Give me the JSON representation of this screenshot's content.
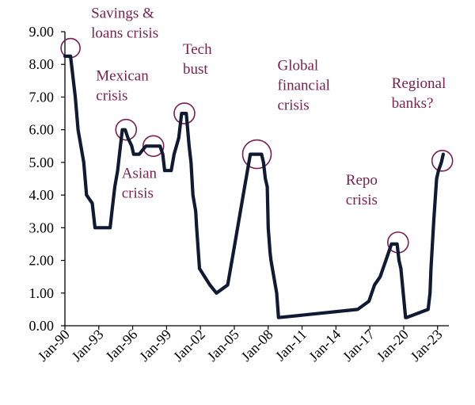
{
  "chart_data": {
    "type": "line",
    "title": "",
    "xlabel": "",
    "ylabel": "",
    "ylim": [
      0,
      9
    ],
    "y_ticks": [
      "0.00",
      "1.00",
      "2.00",
      "3.00",
      "4.00",
      "5.00",
      "6.00",
      "7.00",
      "8.00",
      "9.00"
    ],
    "x_ticks": [
      "Jan-90",
      "Jan-93",
      "Jan-96",
      "Jan-99",
      "Jan-02",
      "Jan-05",
      "Jan-08",
      "Jan-11",
      "Jan-14",
      "Jan-17",
      "Jan-20",
      "Jan-23"
    ],
    "grid": false,
    "legend": "none",
    "line_color": "#111a33",
    "annotation_color": "#7a1f4e",
    "series": [
      {
        "x": [
          "1990-01",
          "1990-07",
          "1990-12",
          "1991-03",
          "1991-09",
          "1991-12",
          "1992-06",
          "1992-09",
          "1993-06",
          "1994-01",
          "1994-03",
          "1994-06",
          "1994-09",
          "1994-12",
          "1995-02",
          "1995-05",
          "1995-08",
          "1995-12",
          "1996-02",
          "1996-08",
          "1997-03",
          "1998-06",
          "1998-09",
          "1998-10",
          "1998-11",
          "1999-06",
          "1999-09",
          "2000-02",
          "2000-05",
          "2000-10",
          "2001-01",
          "2001-03",
          "2001-05",
          "2001-08",
          "2001-09",
          "2001-12",
          "2002-11",
          "2003-06",
          "2004-06",
          "2004-12",
          "2005-06",
          "2005-12",
          "2006-06",
          "2007-06",
          "2007-08",
          "2007-10",
          "2007-12",
          "2008-01",
          "2008-03",
          "2008-04",
          "2008-10",
          "2008-12",
          "2015-12",
          "2016-12",
          "2017-06",
          "2017-12",
          "2018-06",
          "2018-12",
          "2019-06",
          "2019-08",
          "2019-10",
          "2020-03",
          "2020-04",
          "2022-03",
          "2022-05",
          "2022-06",
          "2022-09",
          "2022-12",
          "2023-02",
          "2023-05",
          "2023-07"
        ],
        "y": [
          8.25,
          8.25,
          7.0,
          6.0,
          5.0,
          4.0,
          3.75,
          3.0,
          3.0,
          3.0,
          3.5,
          4.25,
          4.75,
          5.5,
          6.0,
          6.0,
          5.75,
          5.5,
          5.25,
          5.25,
          5.5,
          5.5,
          5.25,
          5.0,
          4.75,
          4.75,
          5.25,
          5.75,
          6.5,
          6.5,
          5.5,
          5.0,
          4.0,
          3.5,
          3.0,
          1.75,
          1.25,
          1.0,
          1.25,
          2.25,
          3.25,
          4.25,
          5.25,
          5.25,
          5.0,
          4.5,
          4.25,
          3.0,
          2.25,
          2.0,
          1.0,
          0.25,
          0.5,
          0.75,
          1.25,
          1.5,
          2.0,
          2.5,
          2.5,
          2.0,
          1.75,
          0.25,
          0.25,
          0.5,
          1.0,
          1.75,
          3.25,
          4.5,
          4.75,
          5.0,
          5.25
        ]
      }
    ],
    "annotations": [
      {
        "lines": [
          "Savings &",
          "loans crisis"
        ],
        "x": "1990-07",
        "y": 8.5
      },
      {
        "lines": [
          "Mexican",
          "crisis"
        ],
        "x": "1995-06",
        "y": 6.0
      },
      {
        "lines": [
          "Asian",
          "crisis"
        ],
        "x": "1997-11",
        "y": 5.5
      },
      {
        "lines": [
          "Tech",
          "bust"
        ],
        "x": "2000-08",
        "y": 6.5
      },
      {
        "lines": [
          "Global",
          "financial",
          "crisis"
        ],
        "x": "2007-01",
        "y": 5.25
      },
      {
        "lines": [
          "Repo",
          "crisis"
        ],
        "x": "2019-07",
        "y": 2.55
      },
      {
        "lines": [
          "Regional",
          "banks?"
        ],
        "x": "2023-06",
        "y": 5.05
      }
    ]
  }
}
